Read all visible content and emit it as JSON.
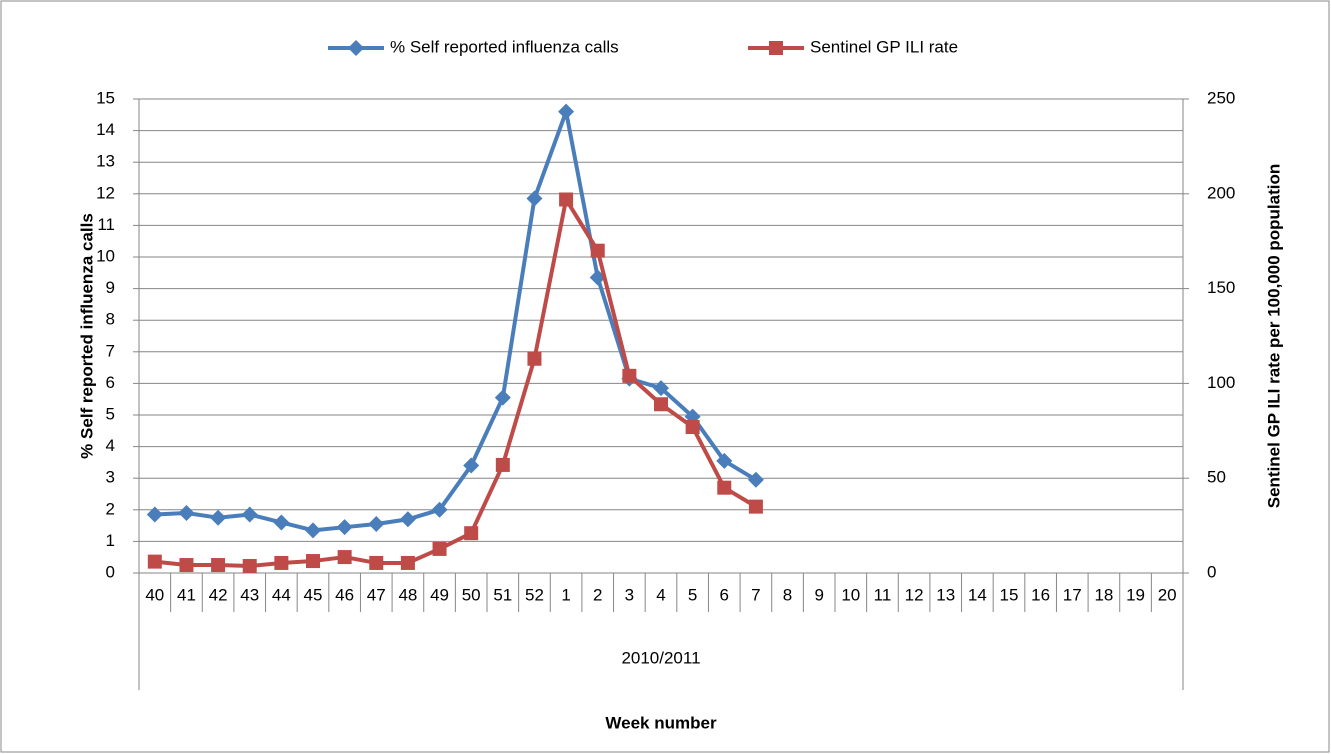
{
  "chart_data": {
    "type": "line",
    "categories": [
      "40",
      "41",
      "42",
      "43",
      "44",
      "45",
      "46",
      "47",
      "48",
      "49",
      "50",
      "51",
      "52",
      "1",
      "2",
      "3",
      "4",
      "5",
      "6",
      "7",
      "8",
      "9",
      "10",
      "11",
      "12",
      "13",
      "14",
      "15",
      "16",
      "17",
      "18",
      "19",
      "20"
    ],
    "category_group": "2010/2011",
    "x_label": "Week number",
    "y_label": "% Self reported influenza calls",
    "y2_label": "Sentinel GP ILI rate per 100,000 population",
    "ylim": [
      0,
      15
    ],
    "yticks": [
      0,
      1,
      2,
      3,
      4,
      5,
      6,
      7,
      8,
      9,
      10,
      11,
      12,
      13,
      14,
      15
    ],
    "y2lim": [
      0,
      250
    ],
    "y2ticks": [
      0,
      50,
      100,
      150,
      200,
      250
    ],
    "grid": true,
    "legend": "top",
    "series": [
      {
        "name": "% Self reported influenza calls",
        "color": "#4a7ebb",
        "marker": "diamond",
        "values": [
          1.85,
          1.9,
          1.75,
          1.85,
          1.6,
          1.35,
          1.45,
          1.55,
          1.7,
          2.0,
          3.4,
          5.55,
          11.85,
          14.6,
          9.35,
          6.15,
          5.85,
          4.95,
          3.55,
          2.95,
          null,
          null,
          null,
          null,
          null,
          null,
          null,
          null,
          null,
          null,
          null,
          null,
          null
        ]
      },
      {
        "name": "Sentinel GP ILI rate",
        "color": "#be4b48",
        "marker": "square",
        "axis": "y2",
        "values": [
          6,
          4.2,
          4.2,
          3.7,
          5.3,
          6.3,
          8.4,
          5.3,
          5.3,
          12.7,
          21,
          57,
          113,
          197,
          170,
          104,
          89,
          77,
          45,
          35,
          null,
          null,
          null,
          null,
          null,
          null,
          null,
          null,
          null,
          null,
          null,
          null,
          null
        ]
      }
    ]
  }
}
